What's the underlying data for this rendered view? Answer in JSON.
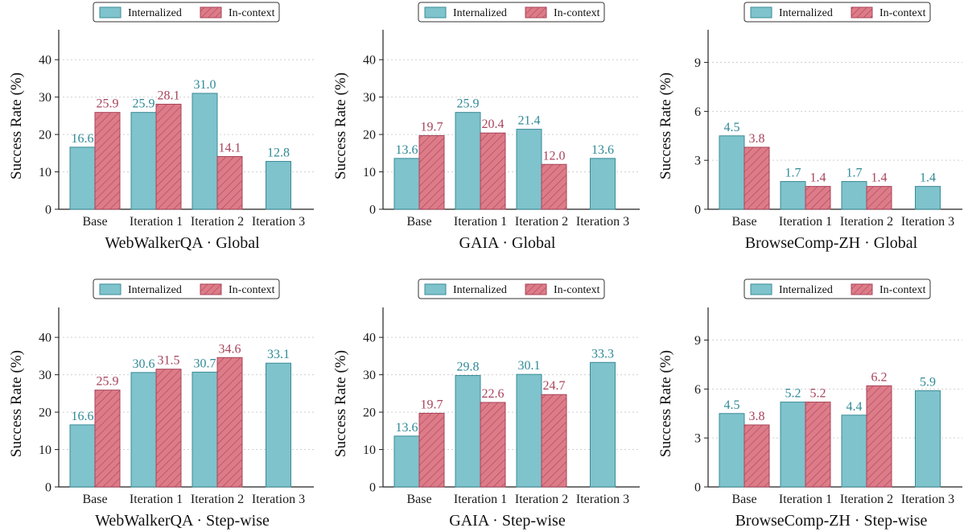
{
  "colors": {
    "internalized": "#7fc3cc",
    "internalized_edge": "#3a8b97",
    "internalized_text": "#2f8a96",
    "in_context": "#dd7c88",
    "in_context_edge": "#a8435a",
    "in_context_text": "#a8435a"
  },
  "chart_data": [
    {
      "type": "bar",
      "title": "WebWalkerQA · Global",
      "ylabel": "Success Rate (%)",
      "ylim": [
        0,
        48
      ],
      "yticks": [
        0,
        10,
        20,
        30,
        40
      ],
      "grid": "horizontal dotted",
      "legend": "top-center",
      "categories": [
        "Base",
        "Iteration 1",
        "Iteration 2",
        "Iteration 3"
      ],
      "series": [
        {
          "name": "Internalized",
          "values": [
            16.6,
            25.9,
            31.0,
            12.8
          ],
          "labels": [
            "16.6",
            "25.9",
            "31.0",
            "12.8"
          ]
        },
        {
          "name": "In-context",
          "values": [
            25.9,
            28.1,
            14.1,
            null
          ],
          "labels": [
            "25.9",
            "28.1",
            "14.1",
            null
          ]
        }
      ]
    },
    {
      "type": "bar",
      "title": "GAIA · Global",
      "ylabel": "Success Rate (%)",
      "ylim": [
        0,
        48
      ],
      "yticks": [
        0,
        10,
        20,
        30,
        40
      ],
      "grid": "horizontal dotted",
      "legend": "top-center",
      "categories": [
        "Base",
        "Iteration 1",
        "Iteration 2",
        "Iteration 3"
      ],
      "series": [
        {
          "name": "Internalized",
          "values": [
            13.6,
            25.9,
            21.4,
            13.6
          ],
          "labels": [
            "13.6",
            "25.9",
            "21.4",
            "13.6"
          ]
        },
        {
          "name": "In-context",
          "values": [
            19.7,
            20.4,
            12.0,
            null
          ],
          "labels": [
            "19.7",
            "20.4",
            "12.0",
            null
          ]
        }
      ]
    },
    {
      "type": "bar",
      "title": "BrowseComp-ZH · Global",
      "ylabel": "Success Rate (%)",
      "ylim": [
        0,
        11
      ],
      "yticks": [
        0,
        3,
        6,
        9
      ],
      "grid": "horizontal dotted",
      "legend": "top-center",
      "categories": [
        "Base",
        "Iteration 1",
        "Iteration 2",
        "Iteration 3"
      ],
      "series": [
        {
          "name": "Internalized",
          "values": [
            4.5,
            1.7,
            1.7,
            1.4
          ],
          "labels": [
            "4.5",
            "1.7",
            "1.7",
            "1.4"
          ]
        },
        {
          "name": "In-context",
          "values": [
            3.8,
            1.4,
            1.4,
            null
          ],
          "labels": [
            "3.8",
            "1.4",
            "1.4",
            null
          ]
        }
      ]
    },
    {
      "type": "bar",
      "title": "WebWalkerQA · Step-wise",
      "ylabel": "Success Rate (%)",
      "ylim": [
        0,
        48
      ],
      "yticks": [
        0,
        10,
        20,
        30,
        40
      ],
      "grid": "horizontal dotted",
      "legend": "top-center",
      "categories": [
        "Base",
        "Iteration 1",
        "Iteration 2",
        "Iteration 3"
      ],
      "series": [
        {
          "name": "Internalized",
          "values": [
            16.6,
            30.6,
            30.7,
            33.1
          ],
          "labels": [
            "16.6",
            "30.6",
            "30.7",
            "33.1"
          ]
        },
        {
          "name": "In-context",
          "values": [
            25.9,
            31.5,
            34.6,
            null
          ],
          "labels": [
            "25.9",
            "31.5",
            "34.6",
            null
          ]
        }
      ]
    },
    {
      "type": "bar",
      "title": "GAIA · Step-wise",
      "ylabel": "Success Rate (%)",
      "ylim": [
        0,
        48
      ],
      "yticks": [
        0,
        10,
        20,
        30,
        40
      ],
      "grid": "horizontal dotted",
      "legend": "top-center",
      "categories": [
        "Base",
        "Iteration 1",
        "Iteration 2",
        "Iteration 3"
      ],
      "series": [
        {
          "name": "Internalized",
          "values": [
            13.6,
            29.8,
            30.1,
            33.3
          ],
          "labels": [
            "13.6",
            "29.8",
            "30.1",
            "33.3"
          ]
        },
        {
          "name": "In-context",
          "values": [
            19.7,
            22.6,
            24.7,
            null
          ],
          "labels": [
            "19.7",
            "22.6",
            "24.7",
            null
          ]
        }
      ]
    },
    {
      "type": "bar",
      "title": "BrowseComp-ZH · Step-wise",
      "ylabel": "Success Rate (%)",
      "ylim": [
        0,
        11
      ],
      "yticks": [
        0,
        3,
        6,
        9
      ],
      "grid": "horizontal dotted",
      "legend": "top-center",
      "categories": [
        "Base",
        "Iteration 1",
        "Iteration 2",
        "Iteration 3"
      ],
      "series": [
        {
          "name": "Internalized",
          "values": [
            4.5,
            5.2,
            4.4,
            5.9
          ],
          "labels": [
            "4.5",
            "5.2",
            "4.4",
            "5.9"
          ]
        },
        {
          "name": "In-context",
          "values": [
            3.8,
            5.2,
            6.2,
            null
          ],
          "labels": [
            "3.8",
            "5.2",
            "6.2",
            null
          ]
        }
      ]
    }
  ]
}
